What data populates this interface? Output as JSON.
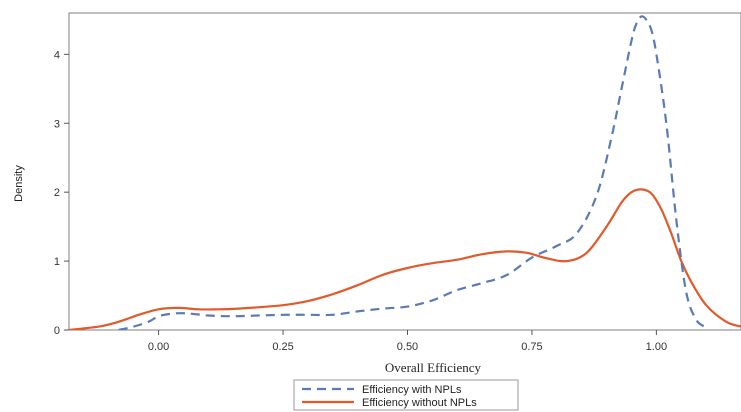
{
  "chart_data": {
    "type": "line",
    "title": "",
    "xlabel": "Overall Efficiency",
    "ylabel": "Density",
    "xlim": [
      -0.18,
      1.17
    ],
    "ylim": [
      0,
      4.6
    ],
    "xticks": [
      0.0,
      0.25,
      0.5,
      0.75,
      1.0
    ],
    "xtick_labels": [
      "0.00",
      "0.25",
      "0.50",
      "0.75",
      "1.00"
    ],
    "yticks": [
      0,
      1,
      2,
      3,
      4
    ],
    "ytick_labels": [
      "0",
      "1",
      "2",
      "3",
      "4"
    ],
    "grid": false,
    "legend_position": "bottom",
    "series": [
      {
        "name": "Efficiency with NPLs",
        "color": "#5b7bb4",
        "dash": "dashed",
        "x": [
          -0.08,
          -0.05,
          -0.02,
          0.0,
          0.03,
          0.06,
          0.1,
          0.15,
          0.2,
          0.25,
          0.3,
          0.35,
          0.4,
          0.45,
          0.5,
          0.55,
          0.6,
          0.65,
          0.7,
          0.75,
          0.8,
          0.84,
          0.88,
          0.91,
          0.93,
          0.95,
          0.96,
          0.97,
          0.98,
          0.99,
          1.0,
          1.02,
          1.04,
          1.06,
          1.08,
          1.1
        ],
        "y": [
          0.0,
          0.05,
          0.12,
          0.2,
          0.24,
          0.24,
          0.21,
          0.2,
          0.21,
          0.22,
          0.22,
          0.22,
          0.27,
          0.31,
          0.34,
          0.43,
          0.58,
          0.68,
          0.8,
          1.05,
          1.22,
          1.4,
          1.95,
          2.8,
          3.5,
          4.2,
          4.45,
          4.55,
          4.5,
          4.35,
          4.0,
          3.0,
          1.6,
          0.55,
          0.15,
          0.04
        ]
      },
      {
        "name": "Efficiency without NPLs",
        "color": "#e05a2b",
        "dash": "solid",
        "x": [
          -0.18,
          -0.12,
          -0.08,
          -0.04,
          0.0,
          0.04,
          0.08,
          0.12,
          0.16,
          0.2,
          0.25,
          0.3,
          0.35,
          0.4,
          0.45,
          0.5,
          0.55,
          0.6,
          0.65,
          0.7,
          0.74,
          0.78,
          0.82,
          0.86,
          0.9,
          0.93,
          0.95,
          0.97,
          0.99,
          1.01,
          1.03,
          1.05,
          1.07,
          1.1,
          1.14,
          1.17
        ],
        "y": [
          0.0,
          0.05,
          0.12,
          0.22,
          0.3,
          0.32,
          0.3,
          0.3,
          0.31,
          0.33,
          0.36,
          0.42,
          0.52,
          0.65,
          0.8,
          0.9,
          0.97,
          1.02,
          1.1,
          1.14,
          1.12,
          1.04,
          1.0,
          1.12,
          1.5,
          1.85,
          2.0,
          2.04,
          1.98,
          1.75,
          1.4,
          1.0,
          0.7,
          0.36,
          0.12,
          0.05
        ]
      }
    ]
  }
}
